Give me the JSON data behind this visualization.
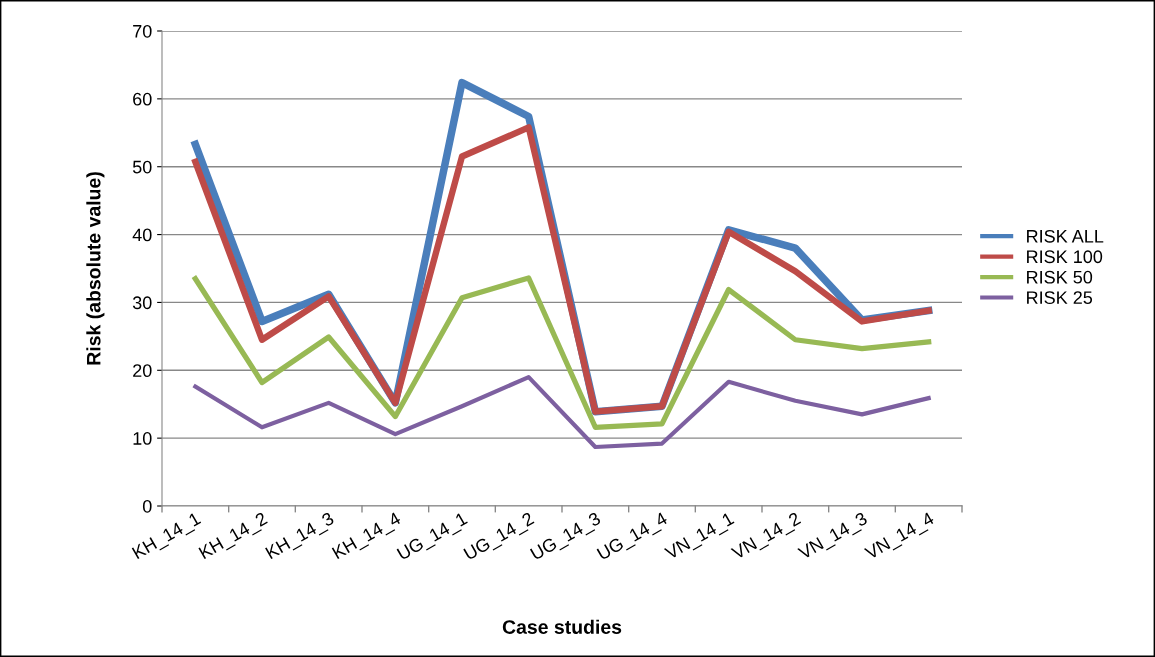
{
  "chart_data": {
    "type": "line",
    "xlabel": "Case studies",
    "ylabel": "Risk (absolute value)",
    "categories": [
      "KH_14_1",
      "KH_14_2",
      "KH_14_3",
      "KH_14_4",
      "UG_14_1",
      "UG_14_2",
      "UG_14_3",
      "UG_14_4",
      "VN_14_1",
      "VN_14_2",
      "VN_14_3",
      "VN_14_4"
    ],
    "series": [
      {
        "name": "RISK ALL",
        "color": "#4a7ebb",
        "values": [
          53.3,
          27.2,
          31.2,
          15.2,
          62.4,
          57.4,
          13.9,
          14.7,
          40.7,
          38.0,
          27.4,
          28.8
        ]
      },
      {
        "name": "RISK 100",
        "color": "#be4b48",
        "values": [
          50.7,
          24.5,
          30.9,
          15.2,
          51.5,
          55.8,
          13.9,
          14.7,
          40.4,
          34.6,
          27.2,
          28.8
        ]
      },
      {
        "name": "RISK 50",
        "color": "#98b954",
        "values": [
          33.5,
          18.2,
          24.9,
          13.2,
          30.7,
          33.6,
          11.6,
          12.1,
          31.9,
          24.5,
          23.2,
          24.2
        ]
      },
      {
        "name": "RISK 25",
        "color": "#7d60a0",
        "values": [
          17.6,
          11.6,
          15.2,
          10.6,
          14.7,
          19.0,
          8.7,
          9.2,
          18.3,
          15.5,
          13.5,
          15.9
        ]
      }
    ],
    "ylim": [
      0,
      70
    ],
    "yticks": [
      0,
      10,
      20,
      30,
      40,
      50,
      60,
      70
    ],
    "grid": "y",
    "legend": "right",
    "marker": "none",
    "line_style": "solid"
  }
}
